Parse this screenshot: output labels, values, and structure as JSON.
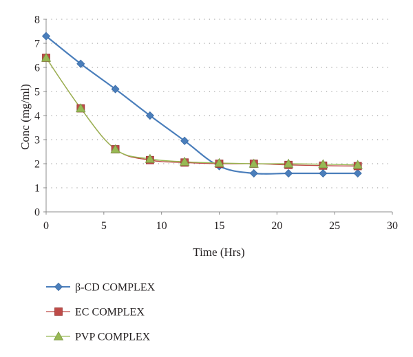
{
  "chart_data": {
    "type": "line",
    "xlabel": "Time (Hrs)",
    "ylabel": "Conc (mg/ml)",
    "xlim": [
      0,
      30
    ],
    "ylim": [
      0,
      8
    ],
    "x_ticks": [
      0,
      5,
      10,
      15,
      20,
      25,
      30
    ],
    "y_ticks": [
      0,
      1,
      2,
      3,
      4,
      5,
      6,
      7,
      8
    ],
    "grid": "horizontal-dotted",
    "legend_placement": "bottom-left",
    "x": [
      0,
      3,
      6,
      9,
      12,
      15,
      18,
      21,
      24,
      27
    ],
    "series": [
      {
        "name": "β-CD COMPLEX",
        "marker": "diamond",
        "color": "#4a7ebb",
        "values": [
          7.3,
          6.15,
          5.1,
          4.0,
          2.95,
          1.9,
          1.6,
          1.6,
          1.6,
          1.6
        ]
      },
      {
        "name": "EC COMPLEX",
        "marker": "square",
        "color": "#be4b48",
        "values": [
          6.4,
          4.3,
          2.6,
          2.15,
          2.05,
          2.0,
          2.0,
          1.95,
          1.92,
          1.9
        ]
      },
      {
        "name": "PVP COMPLEX",
        "marker": "triangle",
        "color": "#98b954",
        "values": [
          6.4,
          4.3,
          2.6,
          2.2,
          2.08,
          2.03,
          2.0,
          2.0,
          1.98,
          1.95
        ]
      }
    ]
  }
}
